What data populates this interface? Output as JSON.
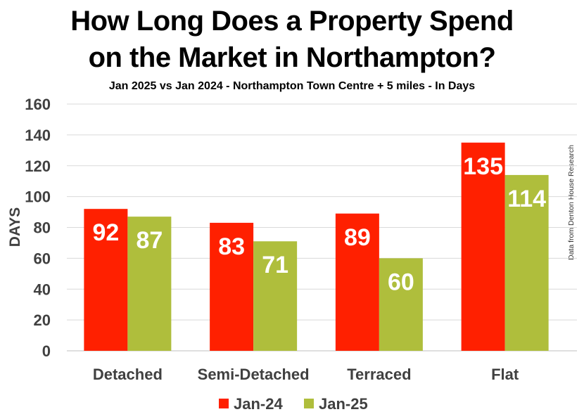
{
  "header": {
    "title_line1": "How Long Does a Property Spend",
    "title_line2": "on the Market in Northampton?",
    "subtitle": "Jan 2025 vs Jan 2024 - Northampton Town Centre + 5 miles - In Days"
  },
  "credit": "Data from Denton House Research",
  "chart_data": {
    "type": "bar",
    "title": "How Long Does a Property Spend on the Market in Northampton?",
    "subtitle": "Jan 2025 vs Jan 2024 - Northampton Town Centre + 5 miles - In Days",
    "xlabel": "",
    "ylabel": "DAYS",
    "ylim": [
      0,
      160
    ],
    "yticks": [
      0,
      20,
      40,
      60,
      80,
      100,
      120,
      140,
      160
    ],
    "grid": true,
    "legend": "bottom",
    "categories": [
      "Detached",
      "Semi-Detached",
      "Terraced",
      "Flat"
    ],
    "series": [
      {
        "name": "Jan-24",
        "color": "#ff2000",
        "values": [
          92,
          83,
          89,
          135
        ]
      },
      {
        "name": "Jan-25",
        "color": "#afbe3c",
        "values": [
          87,
          71,
          60,
          114
        ]
      }
    ]
  }
}
